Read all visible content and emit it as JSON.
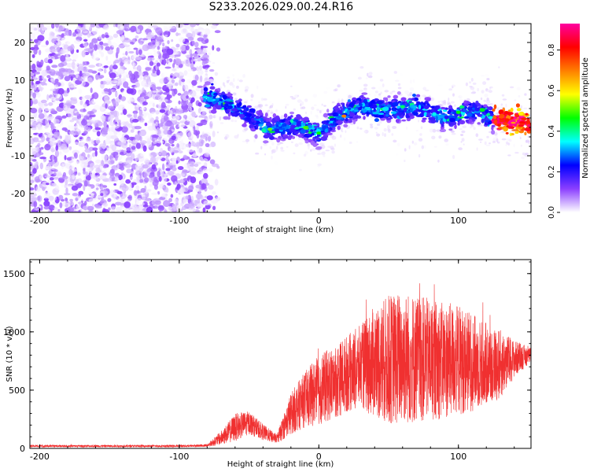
{
  "title": "S233.2026.029.00.24.R16",
  "chart_data": [
    {
      "type": "heatmap",
      "title": "S233.2026.029.00.24.R16",
      "xlabel": "Height of straight line (km)",
      "ylabel": "Frequency (Hz)",
      "xlim": [
        -207,
        152
      ],
      "ylim": [
        -25,
        25
      ],
      "xticks": [
        -200,
        -100,
        0,
        100
      ],
      "yticks": [
        -20,
        -10,
        0,
        10,
        20
      ],
      "colorbar": {
        "label": "Normalized spectral amplitude",
        "range": [
          0,
          0.93
        ],
        "ticks": [
          0,
          0.2,
          0.4,
          0.6,
          0.8
        ],
        "colormap": [
          "#ffffff",
          "#8b3fff",
          "#0000ff",
          "#00ffff",
          "#00ff00",
          "#ffff00",
          "#ff7f00",
          "#ff0000",
          "#ff00a0"
        ]
      },
      "ridge": {
        "description_points_x": [
          -83,
          -60,
          -35,
          -15,
          0,
          15,
          30,
          50,
          70,
          90,
          110,
          125,
          140,
          150
        ],
        "description_points_y": [
          6,
          3,
          -3,
          -2,
          -4,
          1,
          3,
          2,
          3,
          0,
          2,
          0,
          -1,
          -1.5
        ]
      },
      "noise_region_x": [
        -207,
        -80
      ]
    },
    {
      "type": "line",
      "xlabel": "Height of straight line (km)",
      "ylabel": "SNR (10 * v/v)",
      "xlim": [
        -207,
        152
      ],
      "ylim": [
        0,
        1620
      ],
      "xticks": [
        -200,
        -100,
        0,
        100
      ],
      "yticks": [
        0,
        500,
        1000,
        1500
      ],
      "series": [
        {
          "name": "SNR",
          "color": "#f03030",
          "envelope_x": [
            -207,
            -100,
            -80,
            -70,
            -60,
            -50,
            -40,
            -30,
            -20,
            -10,
            0,
            10,
            20,
            30,
            40,
            50,
            60,
            70,
            80,
            90,
            100,
            110,
            120,
            130,
            140,
            152
          ],
          "envelope_mean": [
            20,
            20,
            25,
            90,
            180,
            220,
            140,
            80,
            300,
            420,
            500,
            560,
            640,
            700,
            740,
            760,
            780,
            770,
            760,
            750,
            760,
            740,
            720,
            720,
            770,
            800
          ],
          "envelope_amp": [
            10,
            10,
            12,
            60,
            120,
            100,
            70,
            40,
            180,
            240,
            300,
            320,
            330,
            360,
            480,
            560,
            580,
            560,
            520,
            500,
            480,
            420,
            360,
            300,
            160,
            60
          ]
        }
      ]
    }
  ]
}
